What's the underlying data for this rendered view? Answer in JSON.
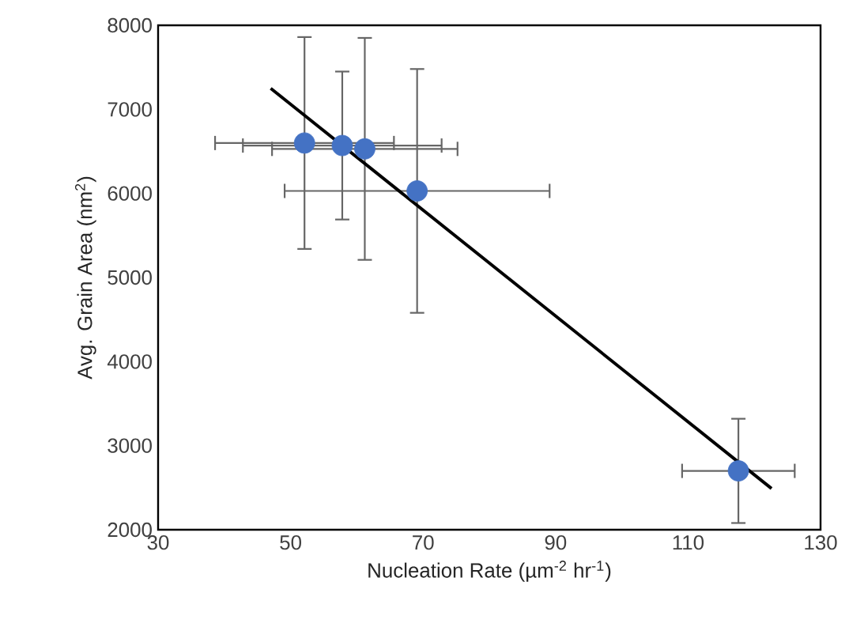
{
  "chart_data": {
    "type": "scatter",
    "xlabel": "Nucleation Rate (µm$^{-2}$ hr$^{-1}$)",
    "ylabel": "Avg. Grain Area (nm$^{2}$)",
    "xlim": [
      30,
      130
    ],
    "xticks": [
      30,
      50,
      70,
      90,
      110,
      130
    ],
    "ylim": [
      2000,
      8000
    ],
    "yticks": [
      2000,
      3000,
      4000,
      5000,
      6000,
      7000,
      8000
    ],
    "grid": false,
    "marker": "circle",
    "series": [
      {
        "color": "#4472c4",
        "x": [
          52.1,
          57.8,
          61.2,
          69.1,
          117.6
        ],
        "values": [
          6600,
          6570,
          6530,
          6030,
          2700
        ],
        "errors": [
          1260,
          880,
          1320,
          1450,
          620
        ],
        "xerrors": [
          13.5,
          15,
          14,
          20,
          8.5
        ]
      },
      {
        "type": "line",
        "color": "#000000",
        "x": [
          47.0,
          122.6
        ],
        "values": [
          7250,
          2490
        ],
        "marker": "none"
      }
    ]
  }
}
